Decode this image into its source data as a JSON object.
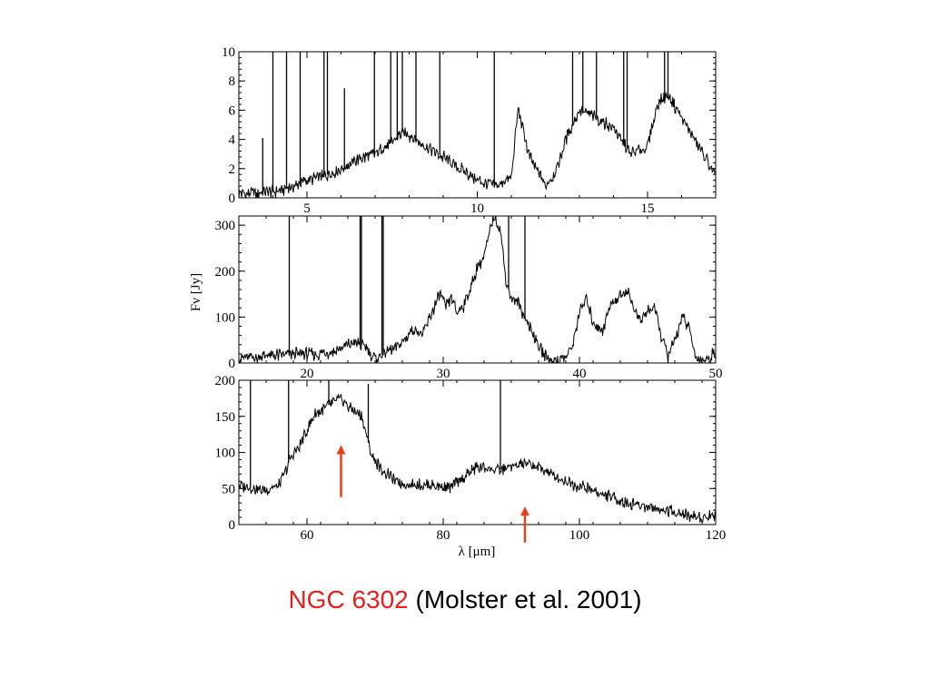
{
  "caption": {
    "object_name": "NGC 6302",
    "reference": "(Molster et al. 2001)"
  },
  "colors": {
    "object_name": "#e8201b",
    "arrow": "#e8401b",
    "line": "#000000"
  },
  "chart_data": [
    {
      "type": "line",
      "panel": "top",
      "xlim": [
        3,
        17
      ],
      "ylim": [
        0,
        10
      ],
      "x_ticks": [
        5,
        10,
        15
      ],
      "y_ticks": [
        0,
        2,
        4,
        6,
        8,
        10
      ],
      "xlabel": "",
      "ylabel": "",
      "grid": false,
      "series": [
        {
          "x": [
            3,
            3.5,
            4,
            4.5,
            5,
            5.5,
            6,
            6.5,
            7,
            7.5,
            7.8,
            8,
            8.5,
            9,
            9.5,
            10,
            10.5,
            11,
            11.2,
            11.5,
            12,
            12.3,
            12.6,
            13,
            13.5,
            14,
            14.5,
            15,
            15.3,
            15.6,
            16,
            16.5,
            17
          ],
          "y": [
            0.3,
            0.3,
            0.4,
            0.7,
            1.2,
            1.5,
            2.0,
            2.6,
            3.0,
            3.8,
            4.5,
            4.3,
            3.5,
            2.8,
            2.0,
            1.2,
            0.8,
            1.3,
            6.2,
            3.0,
            0.8,
            1.8,
            4.0,
            6.0,
            5.5,
            4.8,
            3.0,
            3.5,
            6.5,
            7.0,
            5.5,
            3.5,
            1.5
          ]
        }
      ],
      "spikes": [
        {
          "x": 3.7,
          "y": 4.1
        },
        {
          "x": 4.0,
          "y": 10
        },
        {
          "x": 4.4,
          "y": 10
        },
        {
          "x": 4.8,
          "y": 10
        },
        {
          "x": 5.5,
          "y": 10
        },
        {
          "x": 5.6,
          "y": 10
        },
        {
          "x": 6.1,
          "y": 7.5
        },
        {
          "x": 6.98,
          "y": 10
        },
        {
          "x": 7.46,
          "y": 10
        },
        {
          "x": 7.65,
          "y": 10
        },
        {
          "x": 7.8,
          "y": 10
        },
        {
          "x": 8.2,
          "y": 10
        },
        {
          "x": 8.9,
          "y": 10
        },
        {
          "x": 10.5,
          "y": 10
        },
        {
          "x": 12.8,
          "y": 10
        },
        {
          "x": 13.1,
          "y": 10
        },
        {
          "x": 13.5,
          "y": 10
        },
        {
          "x": 14.3,
          "y": 10
        },
        {
          "x": 14.4,
          "y": 10
        },
        {
          "x": 15.5,
          "y": 10
        },
        {
          "x": 15.6,
          "y": 10
        }
      ]
    },
    {
      "type": "line",
      "panel": "middle",
      "xlim": [
        15,
        50
      ],
      "ylim": [
        0,
        320
      ],
      "x_ticks": [
        20,
        30,
        40,
        50
      ],
      "y_ticks": [
        0,
        100,
        200,
        300
      ],
      "xlabel": "",
      "ylabel": "Fν [Jy]",
      "grid": false,
      "series": [
        {
          "x": [
            15,
            17,
            19,
            21,
            22,
            23.5,
            24.3,
            25,
            26,
            27,
            27.8,
            28.5,
            29,
            29.8,
            30.2,
            30.6,
            31,
            31.5,
            32,
            32.5,
            33,
            33.7,
            34.2,
            34.6,
            35,
            35.5,
            36,
            36.5,
            37,
            37.5,
            38,
            39,
            39.5,
            40,
            40.5,
            41,
            41.7,
            42.3,
            43,
            43.5,
            44,
            44.5,
            45,
            45.5,
            46,
            46.5,
            47,
            47.5,
            48,
            48.5,
            49,
            49.5,
            50
          ],
          "y": [
            10,
            15,
            20,
            20,
            25,
            45,
            35,
            10,
            25,
            45,
            75,
            60,
            100,
            150,
            120,
            145,
            110,
            125,
            160,
            210,
            230,
            320,
            290,
            180,
            140,
            130,
            100,
            70,
            40,
            15,
            5,
            10,
            40,
            110,
            140,
            90,
            70,
            130,
            145,
            160,
            120,
            90,
            115,
            120,
            60,
            15,
            50,
            100,
            80,
            15,
            5,
            10,
            25
          ]
        }
      ],
      "spikes": [
        {
          "x": 18.7,
          "y": 320
        },
        {
          "x": 23.9,
          "y": 320
        },
        {
          "x": 24.0,
          "y": 320
        },
        {
          "x": 25.5,
          "y": 320
        },
        {
          "x": 25.6,
          "y": 320
        },
        {
          "x": 34.8,
          "y": 320
        },
        {
          "x": 36.0,
          "y": 320
        }
      ]
    },
    {
      "type": "line",
      "panel": "bottom",
      "xlim": [
        50,
        120
      ],
      "ylim": [
        0,
        200
      ],
      "x_ticks": [
        60,
        80,
        100,
        120
      ],
      "y_ticks": [
        0,
        50,
        100,
        150,
        200
      ],
      "xlabel": "λ [μm]",
      "ylabel": "",
      "grid": false,
      "series": [
        {
          "x": [
            50,
            52,
            54,
            56,
            57.5,
            59,
            61,
            63,
            65,
            66.5,
            68,
            69.5,
            71,
            73,
            75,
            78,
            81,
            83,
            85,
            88,
            90,
            92,
            95,
            98,
            101,
            104,
            107,
            110,
            113,
            116,
            118,
            120
          ],
          "y": [
            55,
            50,
            48,
            55,
            90,
            110,
            150,
            165,
            175,
            160,
            150,
            95,
            75,
            60,
            55,
            55,
            50,
            65,
            80,
            75,
            80,
            85,
            75,
            60,
            50,
            40,
            30,
            25,
            20,
            12,
            10,
            15
          ]
        }
      ],
      "spikes": [
        {
          "x": 51.7,
          "y": 200
        },
        {
          "x": 57.3,
          "y": 200
        },
        {
          "x": 63.2,
          "y": 200
        },
        {
          "x": 69.0,
          "y": 195
        },
        {
          "x": 88.4,
          "y": 200
        }
      ],
      "annotations": [
        {
          "type": "arrow",
          "x": 65,
          "y_from": 38,
          "y_to": 110
        },
        {
          "type": "arrow",
          "x": 92,
          "y_from": -25,
          "y_to": 25
        }
      ]
    }
  ]
}
